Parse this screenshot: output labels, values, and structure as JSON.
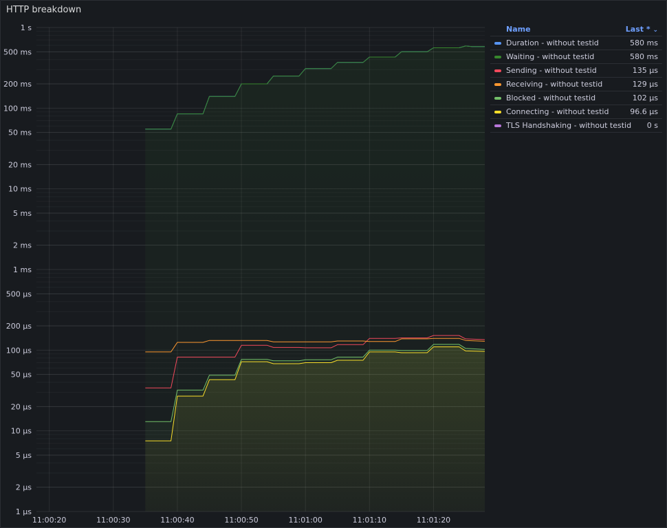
{
  "panel": {
    "title": "HTTP breakdown"
  },
  "legend": {
    "name_header": "Name",
    "value_header": "Last *",
    "rows": [
      {
        "name": "Duration - without testid",
        "value": "580 ms",
        "color": "#5794f2"
      },
      {
        "name": "Waiting - without testid",
        "value": "580 ms",
        "color": "#37872d"
      },
      {
        "name": "Sending - without testid",
        "value": "135 µs",
        "color": "#f2495c"
      },
      {
        "name": "Receiving - without testid",
        "value": "129 µs",
        "color": "#ff9830"
      },
      {
        "name": "Blocked - without testid",
        "value": "102 µs",
        "color": "#73bf69"
      },
      {
        "name": "Connecting - without testid",
        "value": "96.6 µs",
        "color": "#fade2a"
      },
      {
        "name": "TLS Handshaking - without testid",
        "value": "0 s",
        "color": "#b877d9"
      }
    ]
  },
  "chart_data": {
    "type": "line",
    "scale": "log",
    "unit": "seconds",
    "grid": true,
    "legend_placement": "right",
    "ylim": [
      1e-06,
      1
    ],
    "xlim": [
      "11:00:18",
      "11:01:28"
    ],
    "y_ticks": [
      {
        "value": 1,
        "label": "1 s"
      },
      {
        "value": 0.5,
        "label": "500 ms"
      },
      {
        "value": 0.2,
        "label": "200 ms"
      },
      {
        "value": 0.1,
        "label": "100 ms"
      },
      {
        "value": 0.05,
        "label": "50 ms"
      },
      {
        "value": 0.02,
        "label": "20 ms"
      },
      {
        "value": 0.01,
        "label": "10 ms"
      },
      {
        "value": 0.005,
        "label": "5 ms"
      },
      {
        "value": 0.002,
        "label": "2 ms"
      },
      {
        "value": 0.001,
        "label": "1 ms"
      },
      {
        "value": 0.0005,
        "label": "500 µs"
      },
      {
        "value": 0.0002,
        "label": "200 µs"
      },
      {
        "value": 0.0001,
        "label": "100 µs"
      },
      {
        "value": 5e-05,
        "label": "50 µs"
      },
      {
        "value": 2e-05,
        "label": "20 µs"
      },
      {
        "value": 1e-05,
        "label": "10 µs"
      },
      {
        "value": 5e-06,
        "label": "5 µs"
      },
      {
        "value": 2e-06,
        "label": "2 µs"
      },
      {
        "value": 1e-06,
        "label": "1 µs"
      }
    ],
    "x_ticks": [
      "11:00:20",
      "11:00:30",
      "11:00:40",
      "11:00:50",
      "11:01:00",
      "11:01:10",
      "11:01:20"
    ],
    "series": [
      {
        "name": "Duration - without testid",
        "color": "#5794f2",
        "fill": false,
        "points": [
          [
            "11:00:35",
            0.055
          ],
          [
            "11:00:39",
            0.055
          ],
          [
            "11:00:40",
            0.085
          ],
          [
            "11:00:44",
            0.085
          ],
          [
            "11:00:45",
            0.14
          ],
          [
            "11:00:49",
            0.14
          ],
          [
            "11:00:50",
            0.2
          ],
          [
            "11:00:54",
            0.2
          ],
          [
            "11:00:55",
            0.25
          ],
          [
            "11:00:59",
            0.25
          ],
          [
            "11:01:00",
            0.31
          ],
          [
            "11:01:04",
            0.31
          ],
          [
            "11:01:05",
            0.37
          ],
          [
            "11:01:09",
            0.37
          ],
          [
            "11:01:10",
            0.43
          ],
          [
            "11:01:14",
            0.43
          ],
          [
            "11:01:15",
            0.5
          ],
          [
            "11:01:19",
            0.5
          ],
          [
            "11:01:20",
            0.56
          ],
          [
            "11:01:24",
            0.56
          ],
          [
            "11:01:25",
            0.59
          ],
          [
            "11:01:26",
            0.58
          ],
          [
            "11:01:28",
            0.58
          ]
        ]
      },
      {
        "name": "Waiting - without testid",
        "color": "#37872d",
        "fill": true,
        "points": [
          [
            "11:00:35",
            0.055
          ],
          [
            "11:00:39",
            0.055
          ],
          [
            "11:00:40",
            0.085
          ],
          [
            "11:00:44",
            0.085
          ],
          [
            "11:00:45",
            0.14
          ],
          [
            "11:00:49",
            0.14
          ],
          [
            "11:00:50",
            0.2
          ],
          [
            "11:00:54",
            0.2
          ],
          [
            "11:00:55",
            0.25
          ],
          [
            "11:00:59",
            0.25
          ],
          [
            "11:01:00",
            0.31
          ],
          [
            "11:01:04",
            0.31
          ],
          [
            "11:01:05",
            0.37
          ],
          [
            "11:01:09",
            0.37
          ],
          [
            "11:01:10",
            0.43
          ],
          [
            "11:01:14",
            0.43
          ],
          [
            "11:01:15",
            0.5
          ],
          [
            "11:01:19",
            0.5
          ],
          [
            "11:01:20",
            0.56
          ],
          [
            "11:01:24",
            0.56
          ],
          [
            "11:01:25",
            0.59
          ],
          [
            "11:01:26",
            0.58
          ],
          [
            "11:01:28",
            0.58
          ]
        ]
      },
      {
        "name": "Sending - without testid",
        "color": "#f2495c",
        "fill": false,
        "points": [
          [
            "11:00:35",
            3.4e-05
          ],
          [
            "11:00:39",
            3.4e-05
          ],
          [
            "11:00:40",
            8.2e-05
          ],
          [
            "11:00:49",
            8.2e-05
          ],
          [
            "11:00:50",
            0.000115
          ],
          [
            "11:00:54",
            0.000115
          ],
          [
            "11:00:55",
            0.000108
          ],
          [
            "11:00:59",
            0.000108
          ],
          [
            "11:01:00",
            0.000107
          ],
          [
            "11:01:04",
            0.000107
          ],
          [
            "11:01:05",
            0.000117
          ],
          [
            "11:01:09",
            0.000117
          ],
          [
            "11:01:10",
            0.00014
          ],
          [
            "11:01:14",
            0.00014
          ],
          [
            "11:01:15",
            0.000142
          ],
          [
            "11:01:19",
            0.000142
          ],
          [
            "11:01:20",
            0.000152
          ],
          [
            "11:01:24",
            0.000152
          ],
          [
            "11:01:25",
            0.000138
          ],
          [
            "11:01:28",
            0.000135
          ]
        ]
      },
      {
        "name": "Receiving - without testid",
        "color": "#ff9830",
        "fill": false,
        "points": [
          [
            "11:00:35",
            9.5e-05
          ],
          [
            "11:00:39",
            9.5e-05
          ],
          [
            "11:00:40",
            0.000125
          ],
          [
            "11:00:44",
            0.000125
          ],
          [
            "11:00:45",
            0.000132
          ],
          [
            "11:00:54",
            0.000132
          ],
          [
            "11:00:55",
            0.000127
          ],
          [
            "11:01:04",
            0.000127
          ],
          [
            "11:01:05",
            0.00013
          ],
          [
            "11:01:09",
            0.00013
          ],
          [
            "11:01:10",
            0.000128
          ],
          [
            "11:01:14",
            0.000128
          ],
          [
            "11:01:15",
            0.000138
          ],
          [
            "11:01:19",
            0.000138
          ],
          [
            "11:01:20",
            0.00014
          ],
          [
            "11:01:24",
            0.00014
          ],
          [
            "11:01:25",
            0.000132
          ],
          [
            "11:01:28",
            0.000129
          ]
        ]
      },
      {
        "name": "Blocked - without testid",
        "color": "#73bf69",
        "fill": true,
        "points": [
          [
            "11:00:35",
            1.3e-05
          ],
          [
            "11:00:39",
            1.3e-05
          ],
          [
            "11:00:40",
            3.2e-05
          ],
          [
            "11:00:44",
            3.2e-05
          ],
          [
            "11:00:45",
            4.9e-05
          ],
          [
            "11:00:49",
            4.9e-05
          ],
          [
            "11:00:50",
            7.7e-05
          ],
          [
            "11:00:54",
            7.7e-05
          ],
          [
            "11:00:55",
            7.4e-05
          ],
          [
            "11:00:59",
            7.4e-05
          ],
          [
            "11:01:00",
            7.6e-05
          ],
          [
            "11:01:04",
            7.6e-05
          ],
          [
            "11:01:05",
            8.2e-05
          ],
          [
            "11:01:09",
            8.2e-05
          ],
          [
            "11:01:10",
            0.0001
          ],
          [
            "11:01:14",
            0.0001
          ],
          [
            "11:01:15",
            9.9e-05
          ],
          [
            "11:01:19",
            9.9e-05
          ],
          [
            "11:01:20",
            0.000118
          ],
          [
            "11:01:24",
            0.000118
          ],
          [
            "11:01:25",
            0.000105
          ],
          [
            "11:01:28",
            0.000102
          ]
        ]
      },
      {
        "name": "Connecting - without testid",
        "color": "#fade2a",
        "fill": true,
        "points": [
          [
            "11:00:35",
            7.5e-06
          ],
          [
            "11:00:39",
            7.5e-06
          ],
          [
            "11:00:40",
            2.7e-05
          ],
          [
            "11:00:44",
            2.7e-05
          ],
          [
            "11:00:45",
            4.3e-05
          ],
          [
            "11:00:49",
            4.3e-05
          ],
          [
            "11:00:50",
            7.2e-05
          ],
          [
            "11:00:54",
            7.2e-05
          ],
          [
            "11:00:55",
            6.8e-05
          ],
          [
            "11:00:59",
            6.8e-05
          ],
          [
            "11:01:00",
            7e-05
          ],
          [
            "11:01:04",
            7e-05
          ],
          [
            "11:01:05",
            7.5e-05
          ],
          [
            "11:01:09",
            7.5e-05
          ],
          [
            "11:01:10",
            9.5e-05
          ],
          [
            "11:01:14",
            9.5e-05
          ],
          [
            "11:01:15",
            9.3e-05
          ],
          [
            "11:01:19",
            9.3e-05
          ],
          [
            "11:01:20",
            0.00011
          ],
          [
            "11:01:24",
            0.00011
          ],
          [
            "11:01:25",
            9.8e-05
          ],
          [
            "11:01:28",
            9.66e-05
          ]
        ]
      }
    ]
  }
}
